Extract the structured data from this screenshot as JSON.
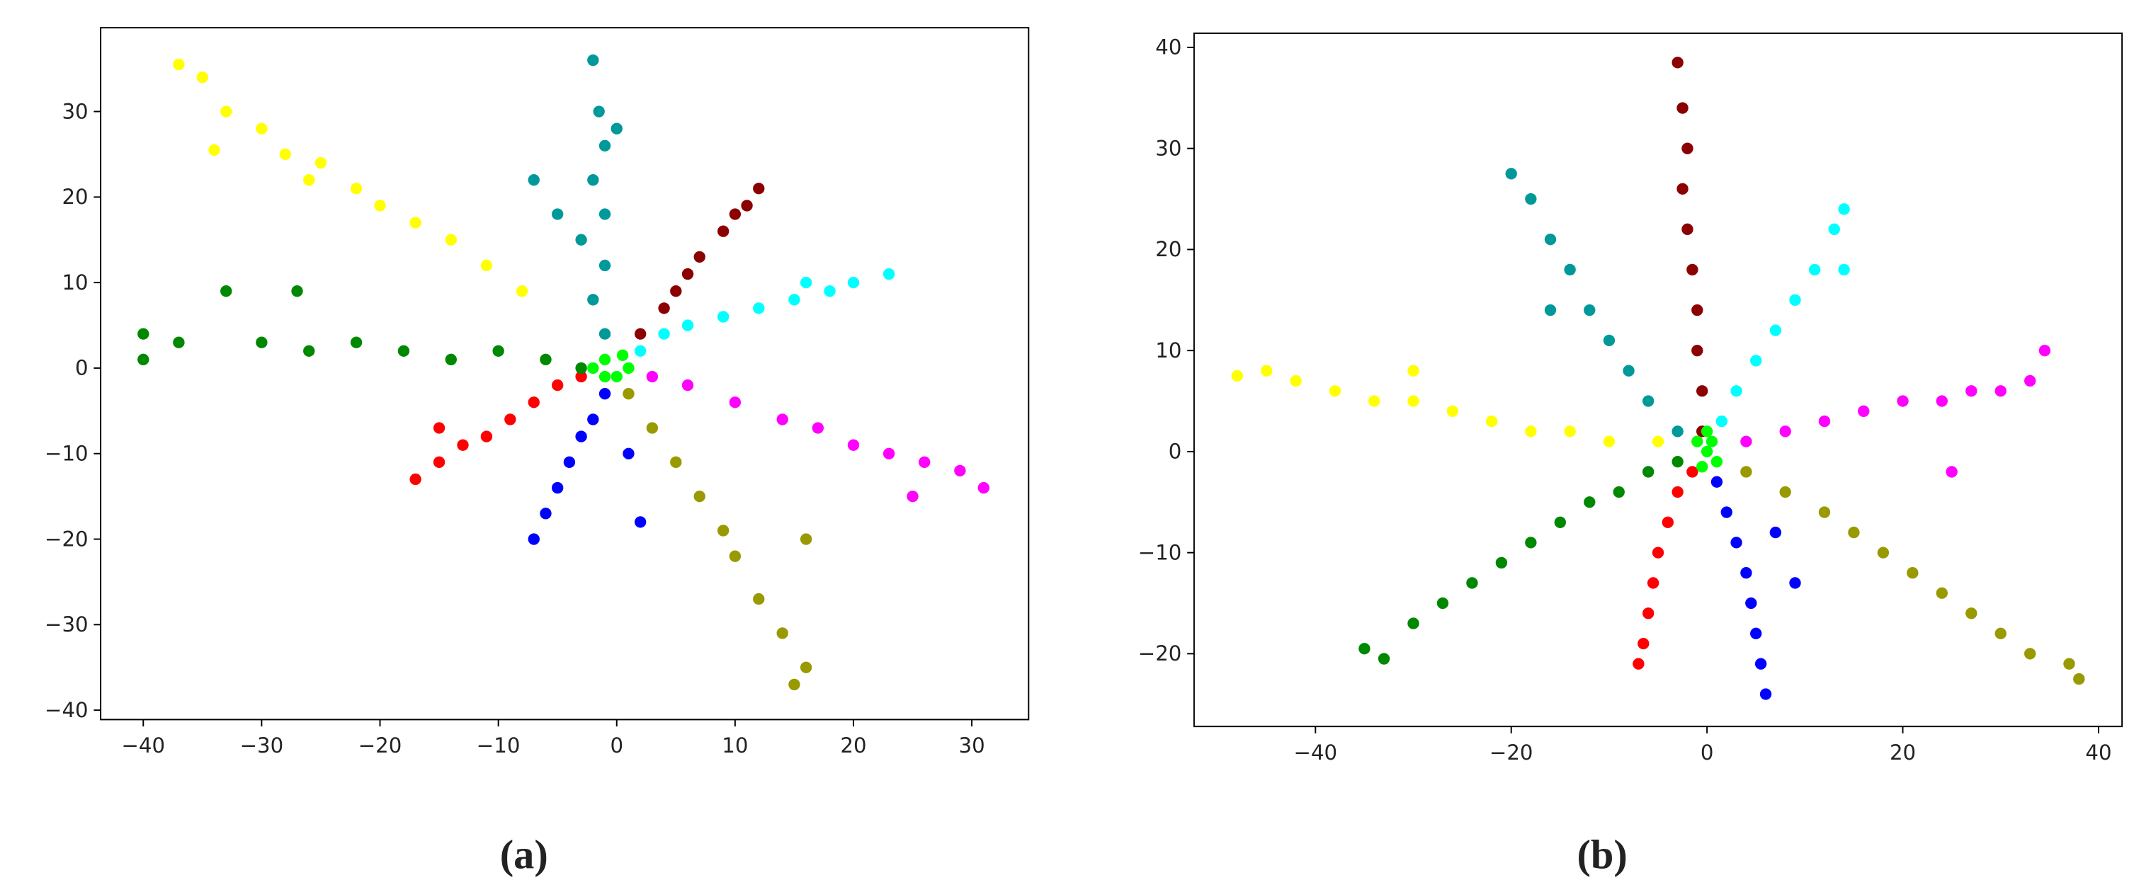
{
  "chart_data": [
    {
      "type": "scatter",
      "caption": "(a)",
      "xlim": [
        -43.6,
        34.8
      ],
      "ylim": [
        -41.1,
        39.8
      ],
      "xticks": [
        {
          "value": -40,
          "label": "−40"
        },
        {
          "value": -30,
          "label": "−30"
        },
        {
          "value": -20,
          "label": "−20"
        },
        {
          "value": -10,
          "label": "−10"
        },
        0,
        10,
        20,
        30
      ],
      "yticks": [
        {
          "value": -40,
          "label": "−40"
        },
        {
          "value": -30,
          "label": "−30"
        },
        {
          "value": -20,
          "label": "−20"
        },
        {
          "value": -10,
          "label": "−10"
        },
        0,
        10,
        20,
        30
      ],
      "series": [
        {
          "color": "#ffff00",
          "x": [
            -37,
            -35,
            -33,
            -30,
            -28,
            -25,
            -22,
            -20,
            -17,
            -14,
            -11,
            -8,
            -34,
            -26
          ],
          "y": [
            35.5,
            34,
            30,
            28,
            25,
            24,
            21,
            19,
            17,
            15,
            12,
            9,
            25.5,
            22
          ]
        },
        {
          "color": "#009999",
          "x": [
            -2,
            -1.5,
            -1,
            -2,
            -1,
            -3,
            -1,
            -2,
            -1,
            -7,
            -5,
            0
          ],
          "y": [
            36,
            30,
            26,
            22,
            18,
            15,
            12,
            8,
            4,
            22,
            18,
            28
          ]
        },
        {
          "color": "#8b0000",
          "x": [
            12,
            10,
            9,
            7,
            6,
            5,
            4,
            2,
            11
          ],
          "y": [
            21,
            18,
            16,
            13,
            11,
            9,
            7,
            4,
            19
          ]
        },
        {
          "color": "#00ffff",
          "x": [
            23,
            20,
            18,
            15,
            12,
            9,
            6,
            4,
            2,
            16
          ],
          "y": [
            11,
            10,
            9,
            8,
            7,
            6,
            5,
            4,
            2,
            10
          ]
        },
        {
          "color": "#ff00ff",
          "x": [
            31,
            29,
            26,
            23,
            20,
            17,
            14,
            10,
            6,
            3,
            25
          ],
          "y": [
            -14,
            -12,
            -11,
            -10,
            -9,
            -7,
            -6,
            -4,
            -2,
            -1,
            -15
          ]
        },
        {
          "color": "#999900",
          "x": [
            15,
            16,
            14,
            12,
            10,
            9,
            7,
            5,
            3,
            1,
            16
          ],
          "y": [
            -37,
            -35,
            -31,
            -27,
            -22,
            -19,
            -15,
            -11,
            -7,
            -3,
            -20
          ]
        },
        {
          "color": "#0000ff",
          "x": [
            -7,
            -6,
            -5,
            -4,
            -3,
            -2,
            -1,
            1,
            2
          ],
          "y": [
            -20,
            -17,
            -14,
            -11,
            -8,
            -6,
            -3,
            -10,
            -18
          ]
        },
        {
          "color": "#ff0000",
          "x": [
            -17,
            -15,
            -13,
            -11,
            -9,
            -7,
            -5,
            -3,
            -15
          ],
          "y": [
            -13,
            -11,
            -9,
            -8,
            -6,
            -4,
            -2,
            -1,
            -7
          ]
        },
        {
          "color": "#008800",
          "x": [
            -40,
            -40,
            -37,
            -33,
            -30,
            -26,
            -22,
            -18,
            -14,
            -10,
            -6,
            -3,
            -27
          ],
          "y": [
            4,
            1,
            3,
            9,
            3,
            2,
            3,
            2,
            1,
            2,
            1,
            0,
            9
          ]
        },
        {
          "color": "#00ff00",
          "x": [
            -2,
            -1,
            0,
            1,
            -1,
            0.5
          ],
          "y": [
            0,
            1,
            -1,
            0,
            -1,
            1.5
          ]
        }
      ]
    },
    {
      "type": "scatter",
      "caption": "(b)",
      "xlim": [
        -52.4,
        42.4
      ],
      "ylim": [
        -27.2,
        41.4
      ],
      "xticks": [
        {
          "value": -40,
          "label": "−40"
        },
        {
          "value": -20,
          "label": "−20"
        },
        0,
        20,
        40
      ],
      "yticks": [
        {
          "value": -20,
          "label": "−20"
        },
        {
          "value": -10,
          "label": "−10"
        },
        0,
        10,
        20,
        30,
        40
      ],
      "series": [
        {
          "color": "#8b0000",
          "x": [
            -3,
            -2.5,
            -2,
            -2.5,
            -2,
            -1.5,
            -1,
            -1,
            -0.5,
            -0.5
          ],
          "y": [
            38.5,
            34,
            30,
            26,
            22,
            18,
            14,
            10,
            6,
            2
          ]
        },
        {
          "color": "#00ffff",
          "x": [
            14,
            13,
            11,
            9,
            7,
            5,
            3,
            1.5,
            14
          ],
          "y": [
            24,
            22,
            18,
            15,
            12,
            9,
            6,
            3,
            18
          ]
        },
        {
          "color": "#009999",
          "x": [
            -20,
            -18,
            -16,
            -14,
            -12,
            -10,
            -8,
            -6,
            -3,
            -16
          ],
          "y": [
            27.5,
            25,
            21,
            18,
            14,
            11,
            8,
            5,
            2,
            14
          ]
        },
        {
          "color": "#ff00ff",
          "x": [
            34.5,
            33,
            30,
            27,
            24,
            20,
            16,
            12,
            8,
            4,
            25
          ],
          "y": [
            10,
            7,
            6,
            6,
            5,
            5,
            4,
            3,
            2,
            1,
            -2
          ]
        },
        {
          "color": "#ffff00",
          "x": [
            -48,
            -45,
            -42,
            -38,
            -34,
            -30,
            -26,
            -22,
            -18,
            -14,
            -10,
            -5,
            -30
          ],
          "y": [
            7.5,
            8,
            7,
            6,
            5,
            5,
            4,
            3,
            2,
            2,
            1,
            1,
            8
          ]
        },
        {
          "color": "#999900",
          "x": [
            38,
            37,
            33,
            30,
            27,
            24,
            21,
            18,
            15,
            12,
            8,
            4
          ],
          "y": [
            -22.5,
            -21,
            -20,
            -18,
            -16,
            -14,
            -12,
            -10,
            -8,
            -6,
            -4,
            -2
          ]
        },
        {
          "color": "#0000ff",
          "x": [
            6,
            5.5,
            5,
            4.5,
            4,
            3,
            2,
            1,
            9,
            7
          ],
          "y": [
            -24,
            -21,
            -18,
            -15,
            -12,
            -9,
            -6,
            -3,
            -13,
            -8
          ]
        },
        {
          "color": "#ff0000",
          "x": [
            -7,
            -6.5,
            -6,
            -5.5,
            -5,
            -4,
            -3,
            -1.5
          ],
          "y": [
            -21,
            -19,
            -16,
            -13,
            -10,
            -7,
            -4,
            -2
          ]
        },
        {
          "color": "#008800",
          "x": [
            -33,
            -35,
            -30,
            -27,
            -24,
            -21,
            -18,
            -15,
            -12,
            -9,
            -6,
            -3
          ],
          "y": [
            -20.5,
            -19.5,
            -17,
            -15,
            -13,
            -11,
            -9,
            -7,
            -5,
            -4,
            -2,
            -1
          ]
        },
        {
          "color": "#00ff00",
          "x": [
            0,
            -1,
            1,
            0.5,
            -0.5,
            0
          ],
          "y": [
            0,
            1,
            -1,
            1,
            -1.5,
            2
          ]
        }
      ]
    }
  ]
}
